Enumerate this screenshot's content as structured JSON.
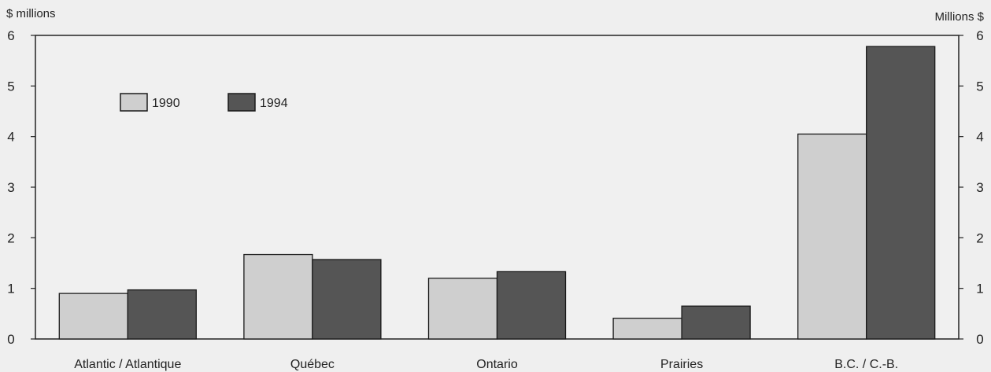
{
  "chart_data": {
    "type": "bar",
    "categories": [
      "Atlantic / Atlantique",
      "Québec",
      "Ontario",
      "Prairies",
      "B.C. / C.-B."
    ],
    "series": [
      {
        "name": "1990",
        "values": [
          0.9,
          1.67,
          1.2,
          0.41,
          4.05
        ],
        "color": "#cfcfcf"
      },
      {
        "name": "1994",
        "values": [
          0.97,
          1.57,
          1.33,
          0.65,
          5.78
        ],
        "color": "#555555"
      }
    ],
    "ylim": [
      0,
      6
    ],
    "yticks": [
      "0",
      "1",
      "2",
      "3",
      "4",
      "5",
      "6"
    ],
    "ylabel_left": "$ millions",
    "ylabel_right": "Millions $",
    "legend_position": "top-left",
    "grid": false
  }
}
